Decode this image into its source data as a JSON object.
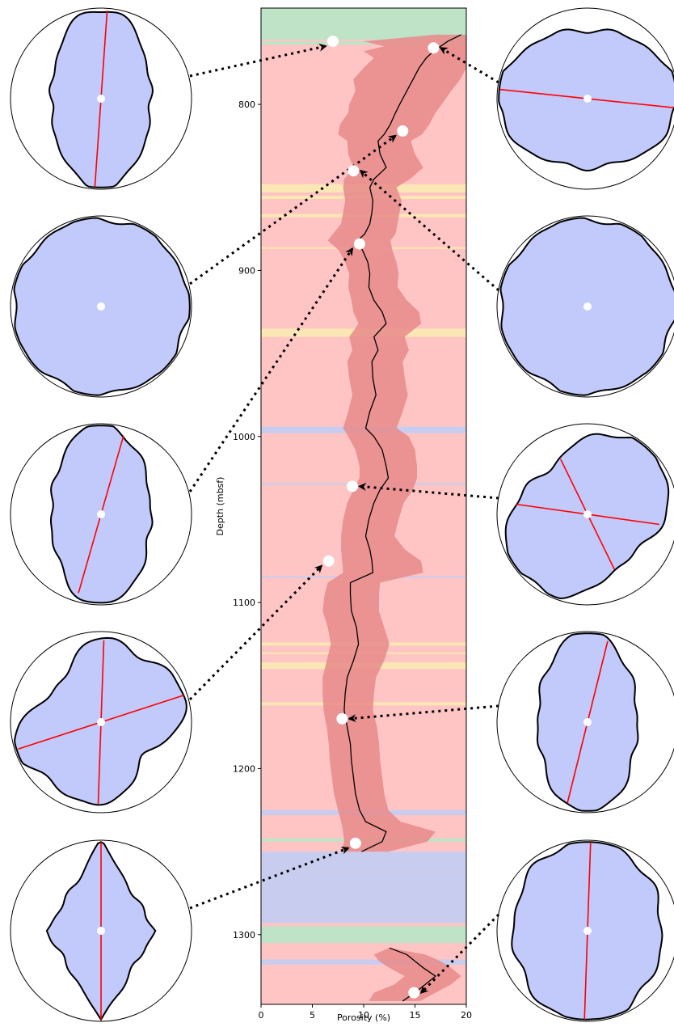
{
  "chart_data": {
    "type": "line",
    "xlabel": "Porosity (%)",
    "ylabel": "Depth (mbsf)",
    "xlim": [
      0,
      20
    ],
    "ylim": [
      1342,
      742
    ],
    "x_ticks": [
      0,
      5,
      10,
      15,
      20
    ],
    "y_ticks": [
      800,
      900,
      1000,
      1100,
      1200,
      1300
    ],
    "colors": {
      "background": "#ffc4c4",
      "band_green": "#bfe3c6",
      "band_yellow": "#fbe7b5",
      "band_blue": "#c8cdf0",
      "envelope": "#e88a8a",
      "line": "#000000",
      "shape_fill": "#c2c9fb",
      "axis_line": "#ff0000"
    },
    "bands": [
      {
        "from": 742,
        "to": 761,
        "color": "band_green"
      },
      {
        "from": 762,
        "to": 764,
        "color": "band_green"
      },
      {
        "from": 848,
        "to": 853,
        "color": "band_yellow"
      },
      {
        "from": 855,
        "to": 857,
        "color": "band_yellow"
      },
      {
        "from": 866,
        "to": 868,
        "color": "band_yellow"
      },
      {
        "from": 886,
        "to": 887,
        "color": "band_yellow"
      },
      {
        "from": 935,
        "to": 940,
        "color": "band_yellow"
      },
      {
        "from": 994,
        "to": 998,
        "color": "band_blue"
      },
      {
        "from": 1028,
        "to": 1029,
        "color": "band_blue"
      },
      {
        "from": 1084,
        "to": 1085,
        "color": "band_blue"
      },
      {
        "from": 1124,
        "to": 1126,
        "color": "band_yellow"
      },
      {
        "from": 1130,
        "to": 1131,
        "color": "band_yellow"
      },
      {
        "from": 1136,
        "to": 1140,
        "color": "band_yellow"
      },
      {
        "from": 1160,
        "to": 1162,
        "color": "band_yellow"
      },
      {
        "from": 1225,
        "to": 1228,
        "color": "band_blue"
      },
      {
        "from": 1242,
        "to": 1244,
        "color": "band_green"
      },
      {
        "from": 1250,
        "to": 1262,
        "color": "band_blue"
      },
      {
        "from": 1262,
        "to": 1293,
        "color": "band_blue"
      },
      {
        "from": 1295,
        "to": 1305,
        "color": "band_green"
      },
      {
        "from": 1315,
        "to": 1318,
        "color": "band_blue"
      }
    ],
    "series": [
      {
        "segment": "upper",
        "depth": [
          758,
          762,
          765,
          768,
          772,
          778,
          785,
          792,
          800,
          805,
          812,
          818,
          822,
          830,
          838,
          845,
          850,
          858,
          865,
          872,
          878,
          882,
          888,
          895,
          902,
          910,
          918,
          925,
          932,
          940,
          948,
          955,
          965,
          975,
          985,
          995,
          1000,
          1008,
          1018,
          1025,
          1032,
          1040,
          1050,
          1060,
          1068,
          1075,
          1082,
          1088,
          1095,
          1105,
          1115,
          1125,
          1135,
          1145,
          1155,
          1165,
          1175,
          1185,
          1195,
          1205,
          1215,
          1225,
          1232,
          1238,
          1244,
          1250
        ],
        "porosity": [
          19.5,
          18.2,
          17.5,
          16.8,
          16.1,
          15.4,
          14.8,
          14.2,
          13.5,
          13.1,
          12.6,
          12.0,
          11.4,
          11.6,
          12.2,
          11.0,
          10.6,
          10.9,
          10.8,
          10.6,
          10.1,
          9.4,
          9.9,
          10.4,
          10.6,
          10.5,
          11.0,
          11.8,
          12.2,
          11.0,
          11.4,
          10.8,
          10.9,
          11.2,
          10.6,
          10.2,
          11.0,
          11.8,
          12.2,
          12.4,
          11.6,
          11.0,
          10.5,
          10.2,
          10.6,
          10.8,
          10.9,
          8.7,
          8.7,
          8.8,
          9.3,
          9.5,
          9.0,
          8.4,
          8.2,
          8.1,
          8.4,
          8.7,
          8.8,
          9.0,
          9.2,
          9.6,
          10.2,
          12.2,
          11.8,
          9.8
        ],
        "low": [
          758,
          762,
          765,
          768,
          772,
          778,
          785,
          792,
          800,
          805,
          812,
          818,
          822,
          830,
          838,
          845,
          850,
          858,
          865,
          872,
          878,
          882,
          888,
          895,
          902,
          910,
          918,
          925,
          932,
          940,
          948,
          955,
          965,
          975,
          985,
          995,
          1000,
          1008,
          1018,
          1025,
          1032,
          1040,
          1050,
          1060,
          1068,
          1075,
          1082,
          1088,
          1095,
          1105,
          1115,
          1125,
          1135,
          1145,
          1155,
          1165,
          1175,
          1185,
          1195,
          1205,
          1215,
          1225,
          1232,
          1238,
          1244,
          1250
        ],
        "low_values": [
          17.0,
          10.0,
          12.0,
          10.0,
          11.0,
          10.0,
          9.0,
          9.2,
          8.6,
          8.5,
          7.7,
          7.5,
          8.4,
          8.5,
          9.0,
          8.1,
          8.0,
          8.2,
          8.0,
          7.8,
          7.0,
          6.5,
          7.6,
          8.2,
          8.6,
          8.5,
          8.8,
          9.0,
          9.5,
          8.6,
          8.9,
          8.4,
          8.6,
          8.9,
          8.5,
          8.0,
          8.5,
          9.2,
          9.6,
          9.6,
          9.0,
          8.4,
          8.0,
          7.8,
          7.8,
          7.9,
          8.0,
          6.5,
          6.2,
          6.0,
          6.5,
          6.8,
          6.4,
          6.0,
          6.0,
          6.1,
          6.4,
          6.6,
          6.7,
          6.9,
          7.1,
          7.5,
          7.8,
          8.0,
          8.1,
          7.8
        ],
        "high_values": [
          20,
          20,
          20,
          20,
          20,
          20,
          19.4,
          18.5,
          17.6,
          17.0,
          16.4,
          15.7,
          14.6,
          15.0,
          15.8,
          14.5,
          13.2,
          13.7,
          13.5,
          13.3,
          13.1,
          12.6,
          12.8,
          13.2,
          13.4,
          13.3,
          14.2,
          15.4,
          15.6,
          14.0,
          14.4,
          13.8,
          14.0,
          14.3,
          13.8,
          13.2,
          14.4,
          15.0,
          15.2,
          15.2,
          14.8,
          13.9,
          13.4,
          13.0,
          14.0,
          15.6,
          15.8,
          11.6,
          11.5,
          11.5,
          12.0,
          12.5,
          12.0,
          11.2,
          11.0,
          10.9,
          11.3,
          11.5,
          11.6,
          11.8,
          12.0,
          12.4,
          13.6,
          17.0,
          16.2,
          12.4
        ]
      },
      {
        "segment": "lower",
        "depth": [
          1308,
          1312,
          1316,
          1320,
          1325,
          1330,
          1335,
          1340
        ],
        "porosity": [
          12.5,
          14.2,
          15.0,
          15.8,
          17.0,
          16.0,
          15.0,
          13.8
        ],
        "low_values": [
          12.5,
          11.0,
          11.5,
          12.5,
          14.0,
          13.0,
          11.0,
          10.5
        ],
        "high_values": [
          12.5,
          16.0,
          17.5,
          18.5,
          19.5,
          18.5,
          17.0,
          15.5
        ]
      }
    ],
    "markers": [
      {
        "depth": 762,
        "porosity": 7.0,
        "side": "left",
        "panel": 0
      },
      {
        "depth": 766,
        "porosity": 16.8,
        "side": "right",
        "panel": 0
      },
      {
        "depth": 816,
        "porosity": 13.8,
        "side": "left",
        "panel": 1
      },
      {
        "depth": 840,
        "porosity": 9.0,
        "side": "right",
        "panel": 1
      },
      {
        "depth": 884,
        "porosity": 9.6,
        "side": "left",
        "panel": 2
      },
      {
        "depth": 1030,
        "porosity": 8.9,
        "side": "right",
        "panel": 2
      },
      {
        "depth": 1075,
        "porosity": 6.6,
        "side": "left",
        "panel": 3
      },
      {
        "depth": 1170,
        "porosity": 7.9,
        "side": "right",
        "panel": 3
      },
      {
        "depth": 1245,
        "porosity": 9.2,
        "side": "left",
        "panel": 4
      },
      {
        "depth": 1335,
        "porosity": 14.9,
        "side": "right",
        "panel": 4
      }
    ],
    "shape_panels": [
      {
        "side": "left",
        "panel": 0,
        "shape": "elongated",
        "axes_deg": [
          86
        ]
      },
      {
        "side": "left",
        "panel": 1,
        "shape": "round",
        "axes_deg": []
      },
      {
        "side": "left",
        "panel": 2,
        "shape": "elongated",
        "axes_deg": [
          74
        ]
      },
      {
        "side": "left",
        "panel": 3,
        "shape": "cross",
        "axes_deg": [
          88,
          18
        ]
      },
      {
        "side": "left",
        "panel": 4,
        "shape": "diamond",
        "axes_deg": [
          90
        ]
      },
      {
        "side": "right",
        "panel": 0,
        "shape": "wide",
        "axes_deg": [
          -6
        ]
      },
      {
        "side": "right",
        "panel": 1,
        "shape": "round",
        "axes_deg": []
      },
      {
        "side": "right",
        "panel": 2,
        "shape": "diamond-tilted",
        "axes_deg": [
          -64,
          -8
        ]
      },
      {
        "side": "right",
        "panel": 3,
        "shape": "elongated",
        "axes_deg": [
          76
        ]
      },
      {
        "side": "right",
        "panel": 4,
        "shape": "oval",
        "axes_deg": [
          88
        ]
      }
    ]
  }
}
